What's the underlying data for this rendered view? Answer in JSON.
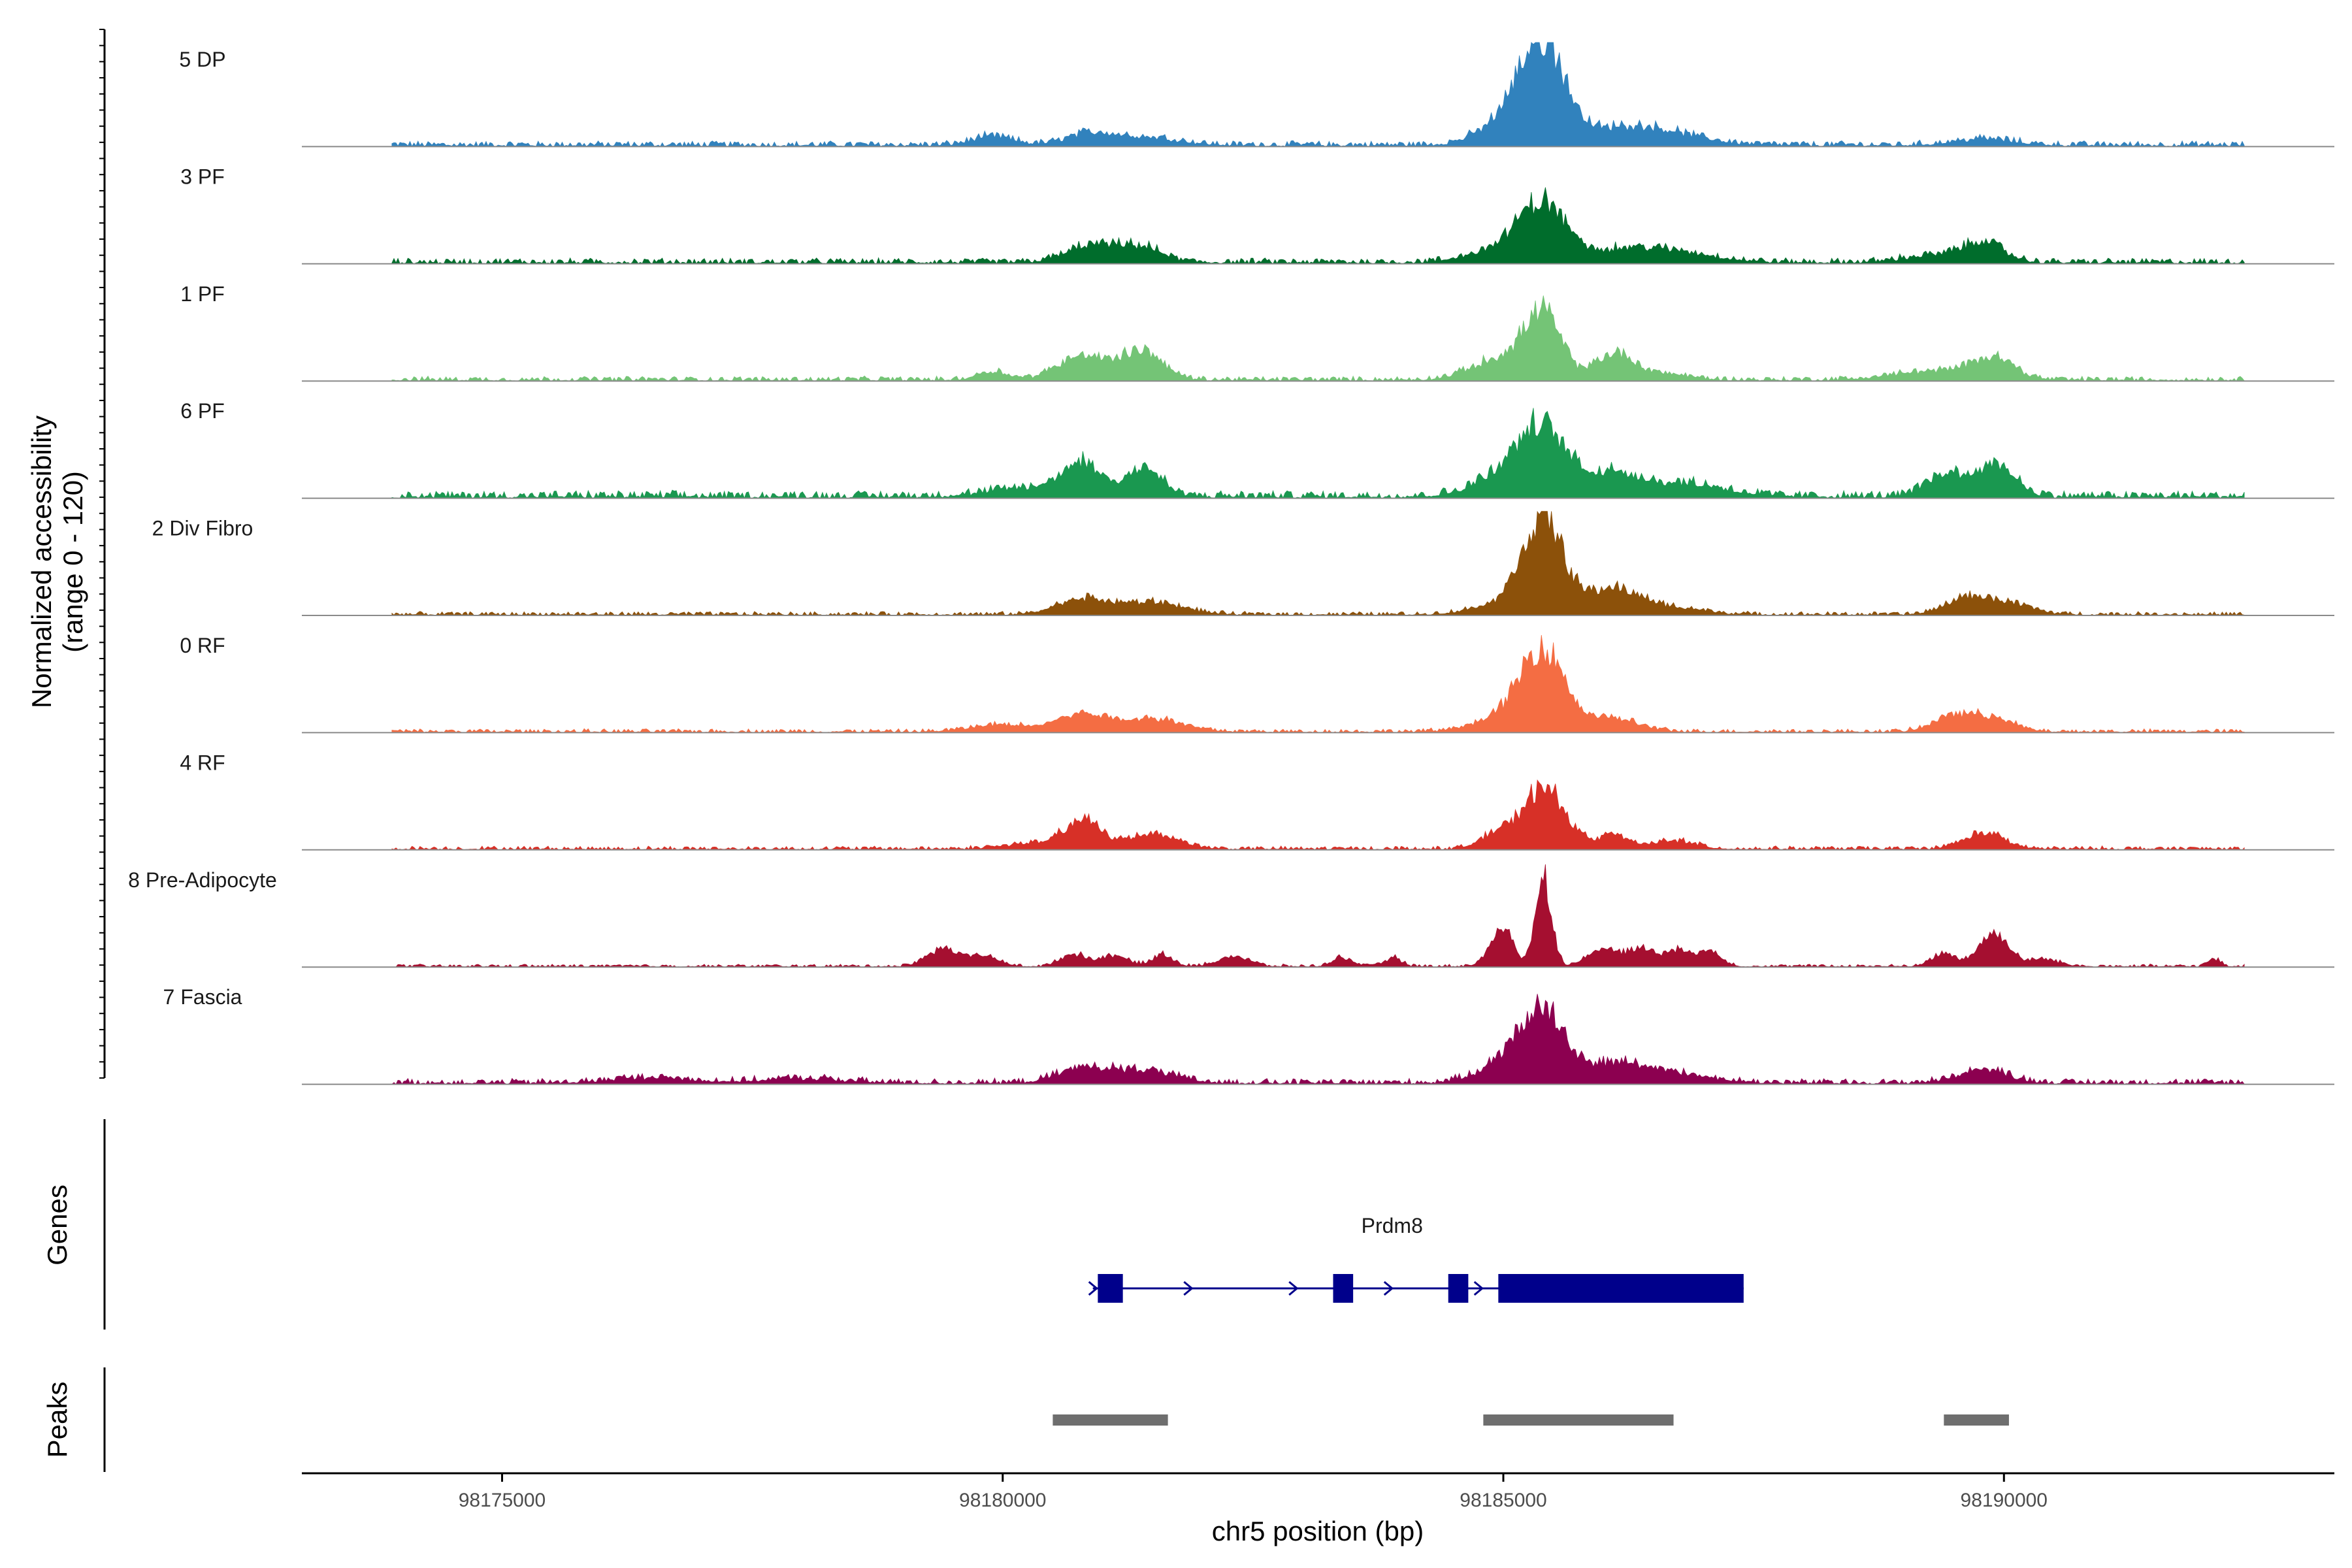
{
  "chart_data": {
    "type": "area",
    "title": "",
    "ylabel_line1": "Normalized accessibility",
    "ylabel_line2": "(range 0 - 120)",
    "ylim": [
      0,
      120
    ],
    "xlabel": "chr5 position (bp)",
    "xlim": [
      98173000,
      98193300
    ],
    "xticks": [
      98175000,
      98180000,
      98185000,
      98190000
    ],
    "xtick_labels": [
      "98175000",
      "98180000",
      "98185000",
      "98190000"
    ],
    "signal_range": [
      98173900,
      98192400
    ],
    "tracks": [
      {
        "name": "5 DP",
        "color": "#3182bd",
        "noise": 6,
        "peaks": [
          [
            98185400,
            105,
            220
          ],
          [
            98185100,
            30,
            300
          ],
          [
            98186200,
            18,
            400
          ],
          [
            98180900,
            14,
            250
          ],
          [
            98181500,
            8,
            300
          ],
          [
            98179900,
            10,
            200
          ],
          [
            98189800,
            7,
            300
          ],
          [
            98186700,
            8,
            400
          ]
        ]
      },
      {
        "name": "3 PF",
        "color": "#006d2c",
        "noise": 6,
        "peaks": [
          [
            98185400,
            55,
            220
          ],
          [
            98185100,
            20,
            350
          ],
          [
            98186200,
            14,
            400
          ],
          [
            98180900,
            20,
            250
          ],
          [
            98181400,
            16,
            200
          ],
          [
            98189800,
            22,
            200
          ],
          [
            98189300,
            8,
            300
          ],
          [
            98186800,
            8,
            400
          ]
        ]
      },
      {
        "name": "1 PF",
        "color": "#74c476",
        "noise": 5,
        "peaks": [
          [
            98185400,
            70,
            180
          ],
          [
            98185000,
            25,
            300
          ],
          [
            98186100,
            28,
            180
          ],
          [
            98180800,
            28,
            250
          ],
          [
            98181400,
            33,
            200
          ],
          [
            98189900,
            25,
            200
          ],
          [
            98189300,
            10,
            400
          ],
          [
            98179900,
            10,
            150
          ],
          [
            98186500,
            8,
            300
          ]
        ]
      },
      {
        "name": "6 PF",
        "color": "#1a9850",
        "noise": 8,
        "peaks": [
          [
            98185400,
            72,
            250
          ],
          [
            98185000,
            22,
            300
          ],
          [
            98186100,
            25,
            250
          ],
          [
            98186800,
            15,
            400
          ],
          [
            98180800,
            36,
            180
          ],
          [
            98181400,
            33,
            180
          ],
          [
            98189900,
            38,
            200
          ],
          [
            98189400,
            25,
            180
          ],
          [
            98180300,
            10,
            400
          ]
        ]
      },
      {
        "name": "2 Div Fibro",
        "color": "#8c510a",
        "noise": 4,
        "peaks": [
          [
            98185400,
            110,
            200
          ],
          [
            98186100,
            30,
            250
          ],
          [
            98185000,
            12,
            300
          ],
          [
            98180800,
            18,
            250
          ],
          [
            98181500,
            14,
            300
          ],
          [
            98189600,
            16,
            200
          ],
          [
            98190000,
            14,
            250
          ],
          [
            98186700,
            8,
            300
          ]
        ]
      },
      {
        "name": "0 RF",
        "color": "#f46d43",
        "noise": 4,
        "peaks": [
          [
            98185400,
            92,
            220
          ],
          [
            98185000,
            15,
            300
          ],
          [
            98186100,
            15,
            250
          ],
          [
            98180800,
            20,
            250
          ],
          [
            98181500,
            15,
            300
          ],
          [
            98189500,
            18,
            200
          ],
          [
            98189900,
            15,
            200
          ],
          [
            98180000,
            8,
            300
          ]
        ]
      },
      {
        "name": "4 RF",
        "color": "#d73027",
        "noise": 4,
        "peaks": [
          [
            98185400,
            70,
            220
          ],
          [
            98184900,
            15,
            150
          ],
          [
            98186100,
            16,
            150
          ],
          [
            98186700,
            10,
            200
          ],
          [
            98180800,
            32,
            180
          ],
          [
            98181500,
            18,
            250
          ],
          [
            98189800,
            18,
            200
          ],
          [
            98180300,
            6,
            300
          ]
        ]
      },
      {
        "name": "8 Pre-Adipocyte",
        "color": "#a50f30",
        "noise": 3,
        "peaks": [
          [
            98185400,
            105,
            80
          ],
          [
            98185000,
            28,
            100
          ],
          [
            98184950,
            18,
            120
          ],
          [
            98186000,
            20,
            150
          ],
          [
            98186400,
            20,
            150
          ],
          [
            98186800,
            18,
            150
          ],
          [
            98187100,
            14,
            100
          ],
          [
            98179400,
            20,
            150
          ],
          [
            98179800,
            12,
            150
          ],
          [
            98180700,
            14,
            120
          ],
          [
            98181100,
            12,
            150
          ],
          [
            98181600,
            14,
            100
          ],
          [
            98182300,
            12,
            150
          ],
          [
            98183400,
            10,
            100
          ],
          [
            98183900,
            10,
            80
          ],
          [
            98189900,
            38,
            150
          ],
          [
            98189400,
            15,
            120
          ],
          [
            98190400,
            8,
            150
          ],
          [
            98192100,
            8,
            60
          ]
        ]
      },
      {
        "name": "7 Fascia",
        "color": "#8c0050",
        "noise": 6,
        "peaks": [
          [
            98185400,
            72,
            220
          ],
          [
            98185100,
            25,
            300
          ],
          [
            98186100,
            18,
            300
          ],
          [
            98186600,
            12,
            400
          ],
          [
            98180800,
            16,
            250
          ],
          [
            98181400,
            14,
            300
          ],
          [
            98189800,
            15,
            250
          ],
          [
            98176500,
            6,
            400
          ],
          [
            98178000,
            5,
            400
          ]
        ]
      }
    ],
    "genes": [
      {
        "name": "Prdm8",
        "strand": "+",
        "start": 98180900,
        "end": 98187400,
        "exons": [
          [
            98180950,
            98181200
          ],
          [
            98183300,
            98183500
          ],
          [
            98184450,
            98184650
          ],
          [
            98184950,
            98187400
          ]
        ],
        "arrows": [
          98180900,
          98181850,
          98182900,
          98183850,
          98184750
        ]
      }
    ],
    "peaks_track_label": "Peaks",
    "genes_track_label": "Genes",
    "peaks": [
      [
        98180500,
        98181650
      ],
      [
        98184800,
        98186700
      ],
      [
        98189400,
        98190050
      ]
    ],
    "colors": {
      "gene": "#00008b",
      "peak": "#6e6e6e",
      "baseline": "#8a8a8a",
      "axis": "#000000"
    }
  }
}
